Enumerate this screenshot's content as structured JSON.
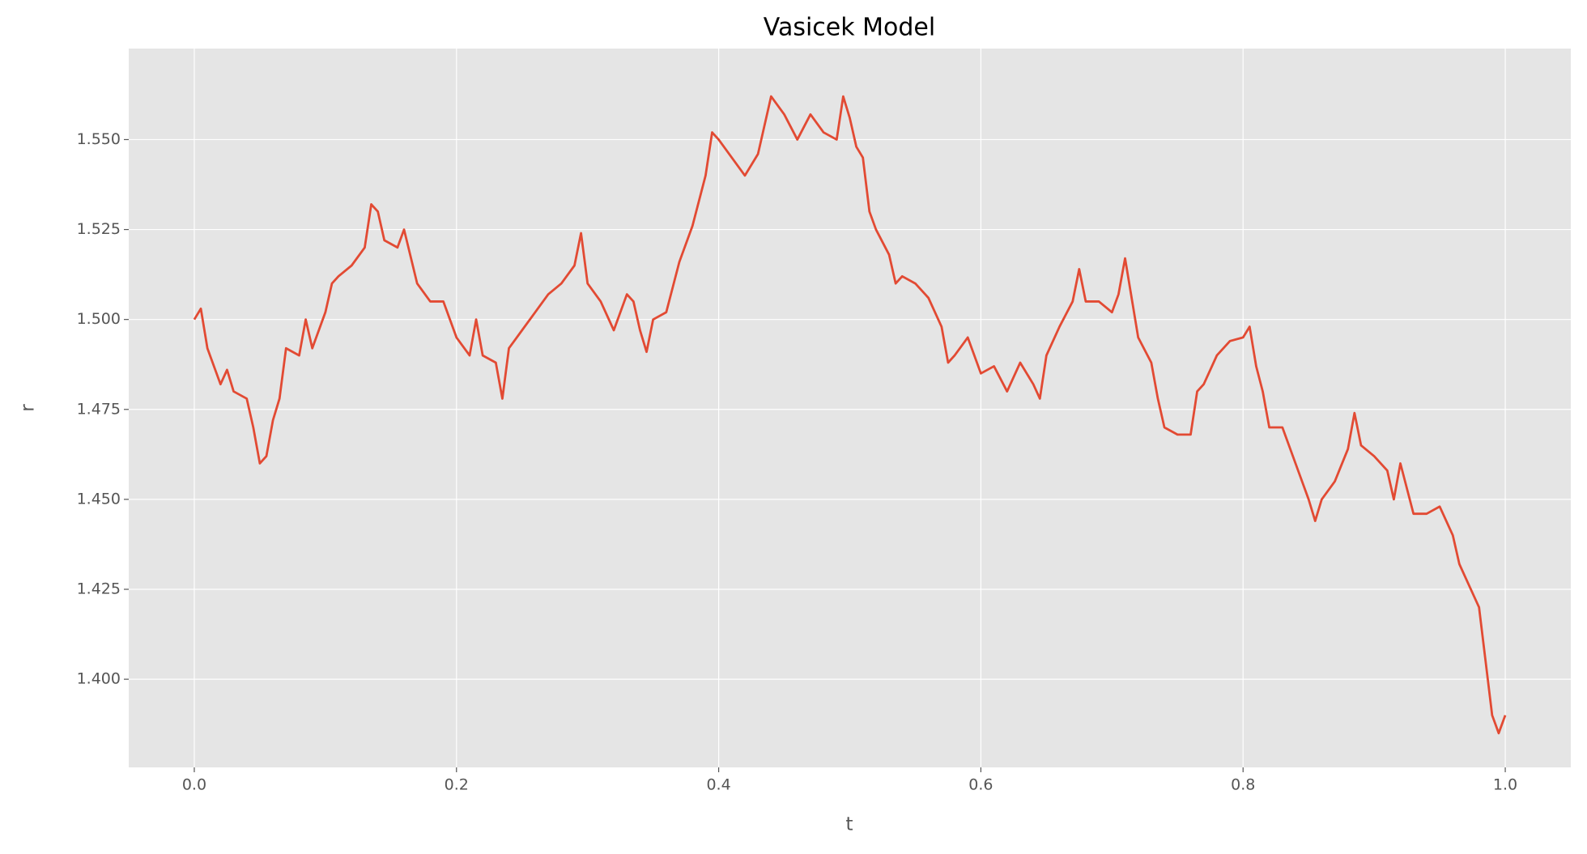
{
  "chart_data": {
    "type": "line",
    "title": "Vasicek Model",
    "x_label": "t",
    "y_label": "r",
    "color": "#e24a33",
    "grid": true,
    "x": [
      0.0,
      0.005,
      0.01,
      0.02,
      0.025,
      0.03,
      0.04,
      0.045,
      0.05,
      0.055,
      0.06,
      0.065,
      0.07,
      0.08,
      0.085,
      0.09,
      0.1,
      0.105,
      0.11,
      0.12,
      0.13,
      0.135,
      0.14,
      0.145,
      0.155,
      0.16,
      0.17,
      0.18,
      0.19,
      0.2,
      0.21,
      0.215,
      0.22,
      0.23,
      0.235,
      0.24,
      0.25,
      0.26,
      0.27,
      0.28,
      0.29,
      0.295,
      0.3,
      0.31,
      0.32,
      0.33,
      0.335,
      0.34,
      0.345,
      0.35,
      0.36,
      0.37,
      0.38,
      0.39,
      0.395,
      0.4,
      0.41,
      0.42,
      0.43,
      0.44,
      0.45,
      0.46,
      0.47,
      0.48,
      0.49,
      0.495,
      0.5,
      0.505,
      0.51,
      0.515,
      0.52,
      0.53,
      0.535,
      0.54,
      0.55,
      0.56,
      0.57,
      0.575,
      0.58,
      0.59,
      0.6,
      0.61,
      0.62,
      0.63,
      0.64,
      0.645,
      0.65,
      0.66,
      0.67,
      0.675,
      0.68,
      0.69,
      0.7,
      0.705,
      0.71,
      0.72,
      0.73,
      0.735,
      0.74,
      0.75,
      0.76,
      0.765,
      0.77,
      0.78,
      0.79,
      0.8,
      0.805,
      0.81,
      0.815,
      0.82,
      0.83,
      0.84,
      0.85,
      0.855,
      0.86,
      0.87,
      0.88,
      0.885,
      0.89,
      0.9,
      0.91,
      0.915,
      0.92,
      0.93,
      0.94,
      0.95,
      0.96,
      0.965,
      0.97,
      0.98,
      0.985,
      0.99,
      0.995,
      1.0
    ],
    "values": [
      1.5,
      1.503,
      1.492,
      1.482,
      1.486,
      1.48,
      1.478,
      1.47,
      1.46,
      1.462,
      1.472,
      1.478,
      1.492,
      1.49,
      1.5,
      1.492,
      1.502,
      1.51,
      1.512,
      1.515,
      1.52,
      1.532,
      1.53,
      1.522,
      1.52,
      1.525,
      1.51,
      1.505,
      1.505,
      1.495,
      1.49,
      1.5,
      1.49,
      1.488,
      1.478,
      1.492,
      1.497,
      1.502,
      1.507,
      1.51,
      1.515,
      1.524,
      1.51,
      1.505,
      1.497,
      1.507,
      1.505,
      1.497,
      1.491,
      1.5,
      1.502,
      1.516,
      1.526,
      1.54,
      1.552,
      1.55,
      1.545,
      1.54,
      1.546,
      1.562,
      1.557,
      1.55,
      1.557,
      1.552,
      1.55,
      1.562,
      1.556,
      1.548,
      1.545,
      1.53,
      1.525,
      1.518,
      1.51,
      1.512,
      1.51,
      1.506,
      1.498,
      1.488,
      1.49,
      1.495,
      1.485,
      1.487,
      1.48,
      1.488,
      1.482,
      1.478,
      1.49,
      1.498,
      1.505,
      1.514,
      1.505,
      1.505,
      1.502,
      1.507,
      1.517,
      1.495,
      1.488,
      1.478,
      1.47,
      1.468,
      1.468,
      1.48,
      1.482,
      1.49,
      1.494,
      1.495,
      1.498,
      1.487,
      1.48,
      1.47,
      1.47,
      1.46,
      1.45,
      1.444,
      1.45,
      1.455,
      1.464,
      1.474,
      1.465,
      1.462,
      1.458,
      1.45,
      1.46,
      1.446,
      1.446,
      1.448,
      1.44,
      1.432,
      1.428,
      1.42,
      1.405,
      1.39,
      1.385,
      1.39
    ],
    "xlim": [
      -0.05,
      1.05
    ],
    "ylim": [
      1.3755,
      1.5753
    ],
    "xticks": [
      {
        "value": 0,
        "label": "0.0"
      },
      0.2,
      0.4,
      0.6,
      0.8,
      {
        "value": 1,
        "label": "1.0"
      }
    ],
    "yticks": [
      {
        "value": 1.4,
        "label": "1.400"
      },
      1.425,
      {
        "value": 1.45,
        "label": "1.450"
      },
      1.475,
      {
        "value": 1.5,
        "label": "1.500"
      },
      1.525,
      {
        "value": 1.55,
        "label": "1.550"
      }
    ]
  }
}
